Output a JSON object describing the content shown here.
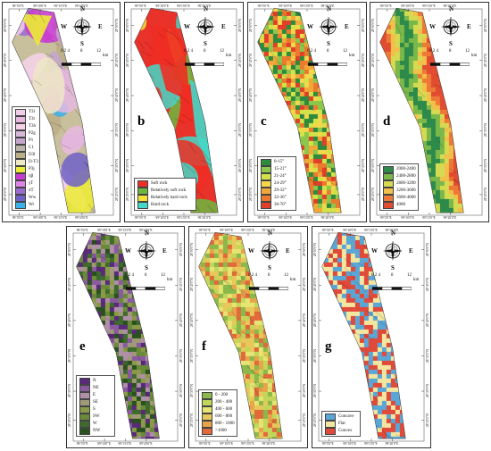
{
  "compass": {
    "n": "N",
    "s": "S",
    "e": "E",
    "w": "W"
  },
  "scale": {
    "ticks": "0 2 4",
    "mid": "8",
    "end": "12",
    "unit": "km"
  },
  "coords": {
    "lon_top": [
      "99°5'0\"E",
      "99°10'0\"E",
      "99°15'0\"E",
      "99°20'0\"E"
    ],
    "lat_left": [
      "28°50'0\"N",
      "28°45'0\"N",
      "28°40'0\"N",
      "28°35'0\"N",
      "28°30'0\"N",
      "28°25'0\"N"
    ]
  },
  "panels": [
    {
      "id": "a",
      "label": "a",
      "map": "lithology",
      "legend": [
        {
          "text": "T3l",
          "color": "#f2cde8"
        },
        {
          "text": "T3t",
          "color": "#e8b8e0"
        },
        {
          "text": "T3h",
          "color": "#f6d2ea"
        },
        {
          "text": "P2g",
          "color": "#d6b8d8"
        },
        {
          "text": "P1",
          "color": "#c4a6cc"
        },
        {
          "text": "C1",
          "color": "#b9b3a8"
        },
        {
          "text": "D3l",
          "color": "#bcae86"
        },
        {
          "text": "D-T3",
          "color": "#ede8c6"
        },
        {
          "text": "P3j",
          "color": "#ecec34"
        },
        {
          "text": "ηβ",
          "color": "#c83cd2"
        },
        {
          "text": "γT",
          "color": "#e084e6"
        },
        {
          "text": "πT",
          "color": "#9a6cd0"
        },
        {
          "text": "Ww",
          "color": "#7060c8"
        },
        {
          "text": "Wr",
          "color": "#3ab0e8"
        }
      ]
    },
    {
      "id": "b",
      "label": "b",
      "map": "rock",
      "legend": [
        {
          "text": "Soft rock",
          "color": "#ee2e24"
        },
        {
          "text": "Relatively soft rock",
          "color": "#6cb840"
        },
        {
          "text": "Relatively hard rock",
          "color": "#f2e23a"
        },
        {
          "text": "Hard rock",
          "color": "#44d8c8"
        }
      ]
    },
    {
      "id": "c",
      "label": "c",
      "map": "slope",
      "legend": [
        {
          "text": "0-15°",
          "color": "#2e8b3e"
        },
        {
          "text": "15-21°",
          "color": "#8cc64a"
        },
        {
          "text": "21-24°",
          "color": "#d4e24a"
        },
        {
          "text": "24-29°",
          "color": "#f2d84a"
        },
        {
          "text": "29-32°",
          "color": "#f0a83a"
        },
        {
          "text": "32-36°",
          "color": "#ec7a2e"
        },
        {
          "text": "36-70°",
          "color": "#e0402a"
        }
      ]
    },
    {
      "id": "d",
      "label": "d",
      "map": "elevation",
      "legend": [
        {
          "text": "2000-2400",
          "color": "#2e8a4a"
        },
        {
          "text": "2400-2800",
          "color": "#7ab84a"
        },
        {
          "text": "2800-3200",
          "color": "#d6da52"
        },
        {
          "text": "3200-3600",
          "color": "#f2c04a"
        },
        {
          "text": "3600-4000",
          "color": "#ec7a36"
        },
        {
          "text": "4000",
          "color": "#e24c30"
        }
      ]
    },
    {
      "id": "e",
      "label": "e",
      "map": "aspect",
      "legend": [
        {
          "text": "N",
          "color": "#5a2a7a"
        },
        {
          "text": "NE",
          "color": "#8a5aa0"
        },
        {
          "text": "E",
          "color": "#b08fa8"
        },
        {
          "text": "SE",
          "color": "#a09a78"
        },
        {
          "text": "S",
          "color": "#8a9a48"
        },
        {
          "text": "SW",
          "color": "#6a8a3a"
        },
        {
          "text": "W",
          "color": "#3e6a2e"
        },
        {
          "text": "NW",
          "color": "#2a5020"
        }
      ]
    },
    {
      "id": "f",
      "label": "f",
      "map": "distance",
      "legend": [
        {
          "text": "0 - 200",
          "color": "#8ab84a"
        },
        {
          "text": "200 - 400",
          "color": "#c2d65a"
        },
        {
          "text": "400 - 600",
          "color": "#e6e472"
        },
        {
          "text": "600 - 800",
          "color": "#e8c85a"
        },
        {
          "text": "800 - 1000",
          "color": "#e8a44a"
        },
        {
          "text": ">1000",
          "color": "#e06a3a"
        }
      ]
    },
    {
      "id": "g",
      "label": "g",
      "map": "curvature",
      "legend": [
        {
          "text": "Concave",
          "color": "#5aa6d6"
        },
        {
          "text": "Flat",
          "color": "#f2e6a0"
        },
        {
          "text": "Convex",
          "color": "#e04a3a"
        }
      ]
    }
  ]
}
